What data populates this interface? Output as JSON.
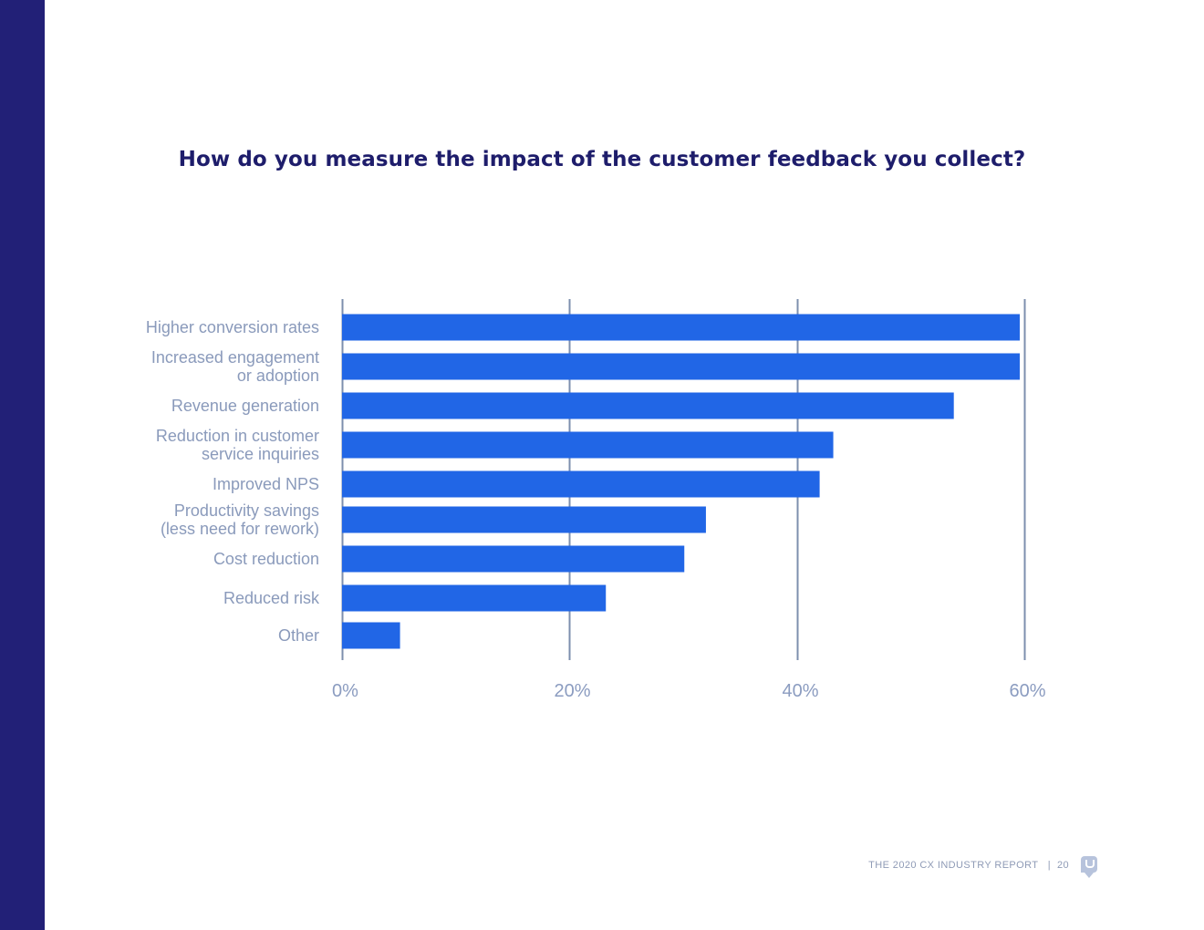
{
  "footer": {
    "report": "THE 2020 CX INDUSTRY REPORT",
    "separator": "|",
    "page": "20",
    "logo_icon": "usabilla-logo-icon"
  },
  "colors": {
    "side_band": "#222077",
    "bar": "#2166e6",
    "title": "#1e1d6b",
    "label": "#8a9abb",
    "gridline": "#7d8fae"
  },
  "chart_data": {
    "type": "bar",
    "orientation": "horizontal",
    "title": "How do you measure the impact of the customer feedback you collect?",
    "xlabel": "",
    "ylabel": "",
    "categories": [
      [
        "Higher conversion rates"
      ],
      [
        "Increased engagement",
        "or adoption"
      ],
      [
        "Revenue generation"
      ],
      [
        "Reduction in customer",
        "service inquiries"
      ],
      [
        "Improved NPS"
      ],
      [
        "Productivity savings",
        "(less need for rework)"
      ],
      [
        "Cost reduction"
      ],
      [
        "Reduced risk"
      ],
      [
        "Other"
      ]
    ],
    "values": [
      59.6,
      59.6,
      53.8,
      43.2,
      42.0,
      32.0,
      30.1,
      23.2,
      5.1
    ],
    "xlim": [
      0,
      60
    ],
    "xticks": [
      0,
      20,
      40,
      60
    ],
    "xtick_labels": [
      "0%",
      "20%",
      "40%",
      "60%"
    ],
    "grid": true,
    "legend": "none"
  }
}
